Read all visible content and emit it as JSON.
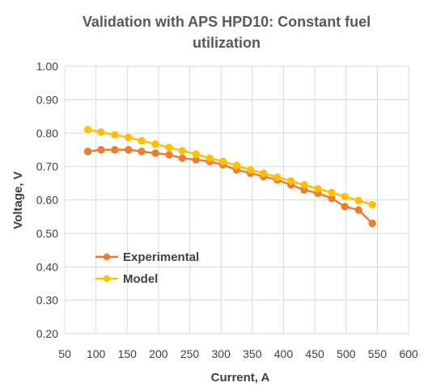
{
  "chart_data": {
    "type": "line",
    "title": "Validation with APS HPD10: Constant fuel utilization",
    "xlabel": "Current, A",
    "ylabel": "Voltage, V",
    "xlim": [
      50,
      600
    ],
    "ylim": [
      0.2,
      1.0
    ],
    "xticks": [
      "50",
      "100",
      "150",
      "200",
      "250",
      "300",
      "350",
      "400",
      "450",
      "500",
      "550",
      "600"
    ],
    "yticks": [
      "0.20",
      "0.30",
      "0.40",
      "0.50",
      "0.60",
      "0.70",
      "0.80",
      "0.90",
      "1.00"
    ],
    "grid": true,
    "legend_position": "bottom-left",
    "series": [
      {
        "name": "Experimental",
        "color": "#ED7D31",
        "x": [
          87,
          108,
          130,
          152,
          173,
          195,
          217,
          238,
          260,
          282,
          303,
          325,
          347,
          368,
          390,
          412,
          433,
          455,
          477,
          498,
          520,
          542
        ],
        "y": [
          0.745,
          0.75,
          0.75,
          0.75,
          0.745,
          0.74,
          0.735,
          0.725,
          0.72,
          0.715,
          0.705,
          0.69,
          0.68,
          0.67,
          0.66,
          0.645,
          0.63,
          0.62,
          0.605,
          0.58,
          0.57,
          0.53
        ]
      },
      {
        "name": "Model",
        "color": "#FFC000",
        "x": [
          87,
          108,
          130,
          152,
          173,
          195,
          217,
          238,
          260,
          282,
          303,
          325,
          347,
          368,
          390,
          412,
          433,
          455,
          477,
          498,
          520,
          542
        ],
        "y": [
          0.81,
          0.803,
          0.795,
          0.787,
          0.777,
          0.767,
          0.757,
          0.747,
          0.737,
          0.725,
          0.715,
          0.703,
          0.69,
          0.68,
          0.668,
          0.657,
          0.645,
          0.633,
          0.622,
          0.61,
          0.598,
          0.586
        ]
      }
    ]
  }
}
